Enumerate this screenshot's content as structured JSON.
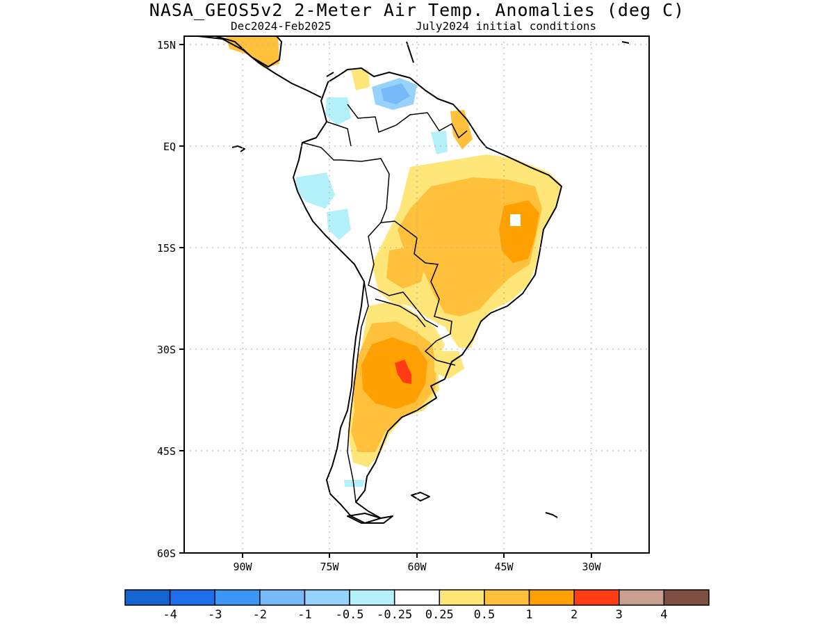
{
  "title": "NASA_GEOS5v2 2-Meter Air Temp. Anomalies (deg C)",
  "subtitle_left": "Dec2024-Feb2025",
  "subtitle_right": "July2024 initial conditions",
  "lat_labels": [
    "15N",
    "EQ",
    "15S",
    "30S",
    "45S",
    "60S"
  ],
  "lon_labels": [
    "90W",
    "75W",
    "60W",
    "45W",
    "30W"
  ],
  "map_extent": {
    "lon": [
      -100,
      -20
    ],
    "lat": [
      -60,
      15
    ]
  },
  "colorbar": {
    "colors": [
      "#1464d2",
      "#1e6eeb",
      "#3c96f5",
      "#78b9fa",
      "#96d2fa",
      "#b4f0fa",
      "#ffffff",
      "#ffe678",
      "#ffc03c",
      "#ffa000",
      "#ff3c14",
      "#c8a090",
      "#7d5041"
    ],
    "labels": [
      "-4",
      "-3",
      "-2",
      "-1",
      "-0.5",
      "-0.25",
      "0.25",
      "0.5",
      "1",
      "2",
      "3",
      "4"
    ]
  }
}
